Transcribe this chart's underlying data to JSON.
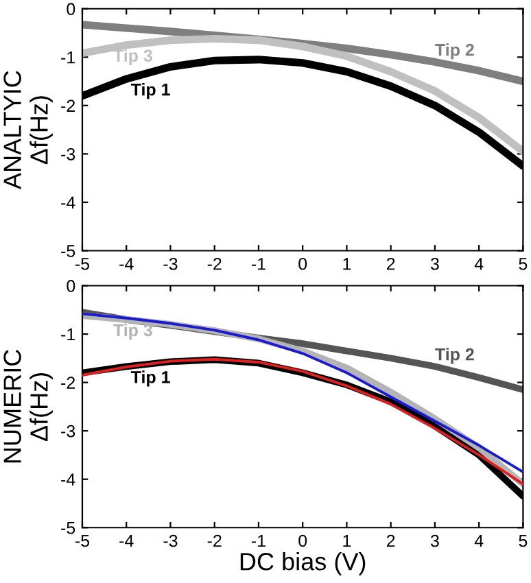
{
  "chart_data": [
    {
      "type": "line",
      "ylabel": "ANALTYIC\nΔf(Hz)",
      "x": [
        -5,
        -4,
        -3,
        -2,
        -1,
        0,
        1,
        2,
        3,
        4,
        5
      ],
      "xlim": [
        -5,
        5
      ],
      "ylim": [
        -5,
        0
      ],
      "xticks": [
        -5,
        -4,
        -3,
        -2,
        -1,
        0,
        1,
        2,
        3,
        4,
        5
      ],
      "yticks": [
        -5,
        -4,
        -3,
        -2,
        -1,
        0
      ],
      "grid": false,
      "legend": false,
      "marker": "none",
      "line_style": "solid",
      "series": [
        {
          "name": "Tip 1",
          "color": "#000000",
          "values": [
            -1.8,
            -1.45,
            -1.2,
            -1.07,
            -1.05,
            -1.12,
            -1.3,
            -1.6,
            -2.0,
            -2.55,
            -3.25
          ]
        },
        {
          "name": "Tip 2",
          "color": "#7f7f7f",
          "values": [
            -0.33,
            -0.4,
            -0.47,
            -0.55,
            -0.63,
            -0.72,
            -0.82,
            -0.95,
            -1.1,
            -1.28,
            -1.5
          ]
        },
        {
          "name": "Tip 3",
          "color": "#c0c0c0",
          "values": [
            -0.92,
            -0.75,
            -0.65,
            -0.62,
            -0.65,
            -0.78,
            -0.98,
            -1.3,
            -1.7,
            -2.25,
            -2.95
          ]
        }
      ]
    },
    {
      "type": "line",
      "ylabel": "NUMERIC\nΔf(Hz)",
      "xlabel": "DC bias (V)",
      "x": [
        -5,
        -4,
        -3,
        -2,
        -1,
        0,
        1,
        2,
        3,
        4,
        5
      ],
      "xlim": [
        -5,
        5
      ],
      "ylim": [
        -5,
        0
      ],
      "xticks": [
        -5,
        -4,
        -3,
        -2,
        -1,
        0,
        1,
        2,
        3,
        4,
        5
      ],
      "yticks": [
        -5,
        -4,
        -3,
        -2,
        -1,
        0
      ],
      "grid": false,
      "legend": false,
      "marker": "none",
      "line_style": "solid",
      "series": [
        {
          "name": "Tip 1",
          "color": "#000000",
          "values": [
            -1.8,
            -1.67,
            -1.57,
            -1.53,
            -1.6,
            -1.8,
            -2.05,
            -2.4,
            -2.9,
            -3.5,
            -4.35
          ]
        },
        {
          "name": "Tip 2",
          "color": "#555555",
          "values": [
            -0.55,
            -0.7,
            -0.82,
            -0.95,
            -1.08,
            -1.2,
            -1.35,
            -1.5,
            -1.67,
            -1.9,
            -2.15
          ]
        },
        {
          "name": "Tip 3",
          "color": "#b4b4b4",
          "values": [
            -0.62,
            -0.7,
            -0.8,
            -0.93,
            -1.1,
            -1.35,
            -1.7,
            -2.2,
            -2.75,
            -3.35,
            -4.1
          ]
        },
        {
          "color": "#e02020",
          "values": [
            -1.85,
            -1.68,
            -1.56,
            -1.52,
            -1.58,
            -1.77,
            -2.07,
            -2.45,
            -2.95,
            -3.5,
            -4.1
          ]
        },
        {
          "color": "#1a1ad0",
          "values": [
            -0.58,
            -0.67,
            -0.78,
            -0.92,
            -1.12,
            -1.4,
            -1.8,
            -2.3,
            -2.8,
            -3.3,
            -3.85
          ]
        }
      ]
    }
  ]
}
